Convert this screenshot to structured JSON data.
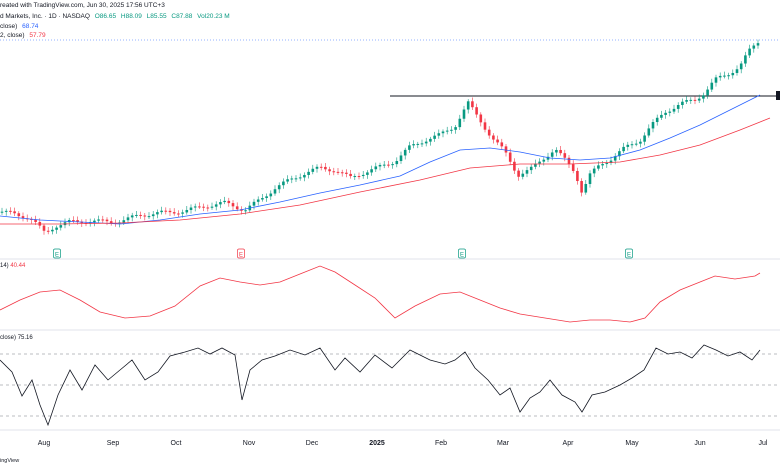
{
  "header": {
    "line1": "reated with TradingView.com, Jun 30, 2025 17:56 UTC+3",
    "line2_name": "d Markets, Inc. · 1D · NASDAQ",
    "open": "O86.65",
    "high": "H88.09",
    "low": "L85.55",
    "close": "C87.88",
    "volume": "Vol20.23 M",
    "ma1_label": "close)",
    "ma1_value": "68.74",
    "ma2_label": "2, close)",
    "ma2_value": "57.79"
  },
  "panes": {
    "indicator2_label": "14)",
    "indicator2_value": "40.44",
    "rsi_label": "close)",
    "rsi_value": "75.16"
  },
  "earnings_marker": "E",
  "xaxis": {
    "labels": [
      "Aug",
      "Sep",
      "Oct",
      "Nov",
      "Dec",
      "2025",
      "Feb",
      "Mar",
      "Apr",
      "May",
      "Jun",
      "Jul"
    ]
  },
  "footer": "ingView",
  "colors": {
    "up": "#089981",
    "down": "#f23645",
    "ma_short": "#2962ff",
    "ma_long": "#f23645",
    "indicator": "#f23645",
    "rsi": "#131722"
  }
}
